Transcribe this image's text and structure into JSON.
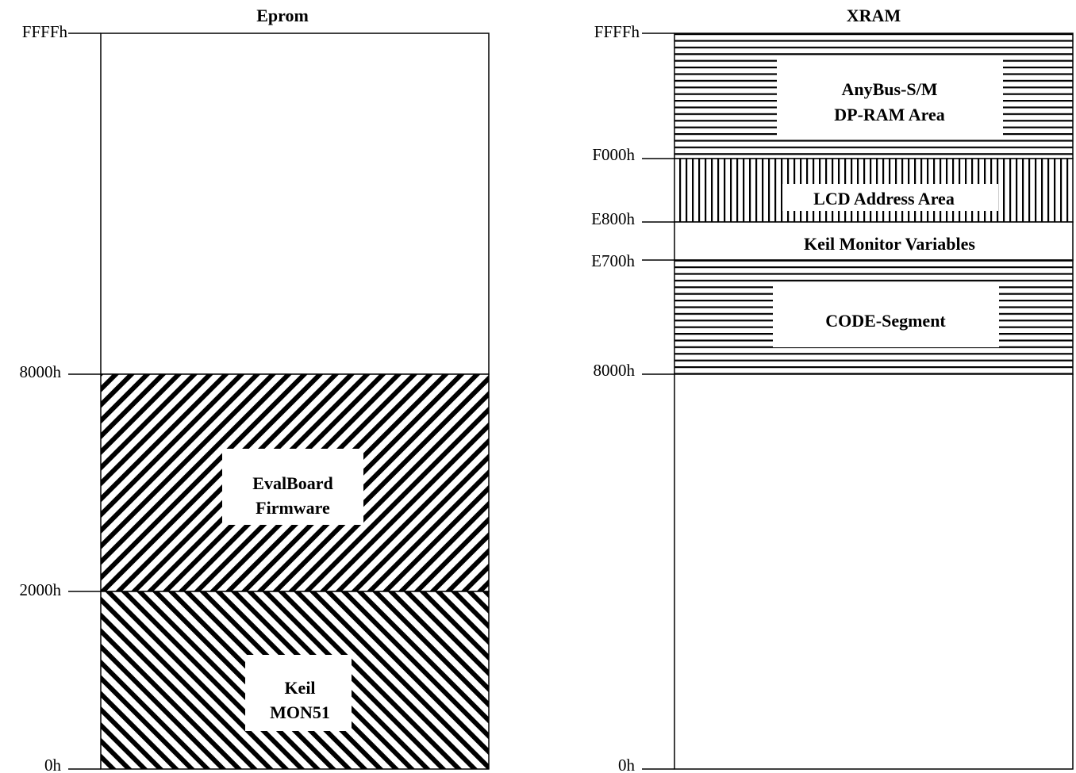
{
  "eprom": {
    "title": "Eprom",
    "addresses": [
      "FFFFh",
      "8000h",
      "2000h",
      "0h"
    ],
    "regions": [
      {
        "lines": [
          "EvalBoard",
          "Firmware"
        ],
        "pattern": "diagonal-up"
      },
      {
        "lines": [
          "Keil",
          "MON51"
        ],
        "pattern": "diagonal-down"
      }
    ]
  },
  "xram": {
    "title": "XRAM",
    "addresses": [
      "FFFFh",
      "F000h",
      "E800h",
      "E700h",
      "8000h",
      "0h"
    ],
    "regions": [
      {
        "lines": [
          "AnyBus-S/M",
          "DP-RAM Area"
        ],
        "pattern": "horizontal"
      },
      {
        "lines": [
          "LCD Address Area"
        ],
        "pattern": "vertical"
      },
      {
        "lines": [
          "Keil Monitor Variables"
        ],
        "pattern": "none"
      },
      {
        "lines": [
          "CODE-Segment"
        ],
        "pattern": "horizontal"
      }
    ]
  }
}
